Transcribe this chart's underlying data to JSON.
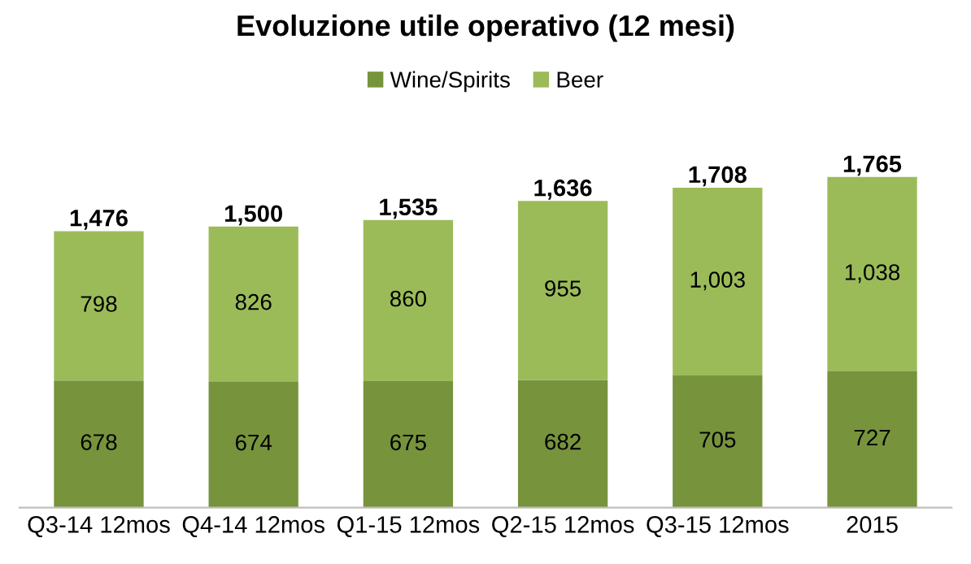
{
  "chart_data": {
    "type": "bar",
    "title": "Evoluzione utile operativo (12 mesi)",
    "categories": [
      "Q3-14 12mos",
      "Q4-14 12mos",
      "Q1-15 12mos",
      "Q2-15 12mos",
      "Q3-15 12mos",
      "2015"
    ],
    "stacked": true,
    "data_labels": true,
    "legend": "top",
    "grid": false,
    "tick_labels": "x",
    "series": [
      {
        "name": "Wine/Spirits",
        "color": "#77933c",
        "values": [
          678,
          674,
          675,
          682,
          705,
          727
        ],
        "value_labels": [
          "678",
          "674",
          "675",
          "682",
          "705",
          "727"
        ]
      },
      {
        "name": "Beer",
        "color": "#9bbb59",
        "values": [
          798,
          826,
          860,
          955,
          1003,
          1038
        ],
        "value_labels": [
          "798",
          "826",
          "860",
          "955",
          "1,003",
          "1,038"
        ]
      }
    ],
    "totals": [
      "1,476",
      "1,500",
      "1,535",
      "1,636",
      "1,708",
      "1,765"
    ]
  }
}
